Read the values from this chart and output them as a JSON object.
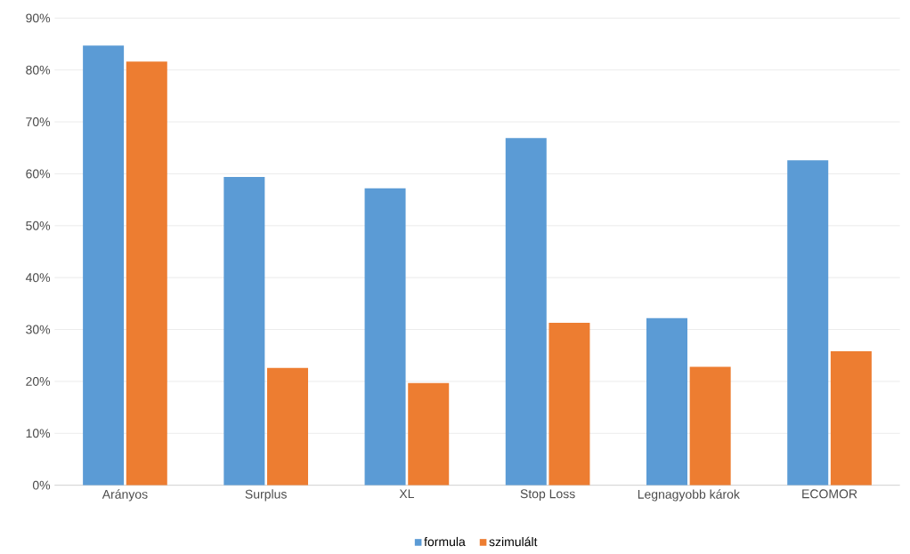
{
  "chart_data": {
    "type": "bar",
    "categories": [
      "Arányos",
      "Surplus",
      "XL",
      "Stop Loss",
      "Legnagyobb károk",
      "ECOMOR"
    ],
    "series": [
      {
        "name": "formula",
        "color": "#5b9bd5",
        "values": [
          84.7,
          59.4,
          57.2,
          66.9,
          32.2,
          62.6
        ]
      },
      {
        "name": "szimulált",
        "color": "#ed7d31",
        "values": [
          81.6,
          22.6,
          19.7,
          31.3,
          22.8,
          25.8
        ]
      }
    ],
    "ylim": [
      0,
      90
    ],
    "yticks": [
      {
        "value": 0,
        "label": "0%"
      },
      {
        "value": 10,
        "label": "10%"
      },
      {
        "value": 20,
        "label": "20%"
      },
      {
        "value": 30,
        "label": "30%"
      },
      {
        "value": 40,
        "label": "40%"
      },
      {
        "value": 50,
        "label": "50%"
      },
      {
        "value": 60,
        "label": "60%"
      },
      {
        "value": 70,
        "label": "70%"
      },
      {
        "value": 80,
        "label": "80%"
      },
      {
        "value": 90,
        "label": "90%"
      }
    ],
    "grid": "y",
    "legend": "bottom"
  }
}
